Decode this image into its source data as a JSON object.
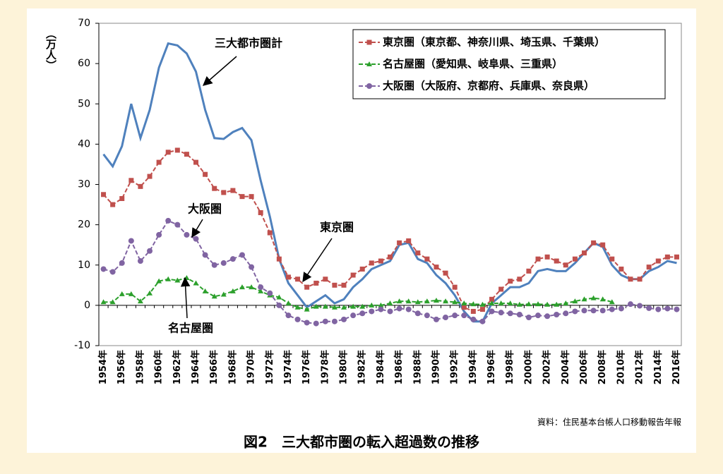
{
  "chart_data": {
    "type": "line",
    "ylabel": "（万人）",
    "categories": [
      "1954年",
      null,
      "1956年",
      null,
      "1958年",
      null,
      "1960年",
      null,
      "1962年",
      null,
      "1964年",
      null,
      "1966年",
      null,
      "1968年",
      null,
      "1970年",
      null,
      "1972年",
      null,
      "1974年",
      null,
      "1976年",
      null,
      "1978年",
      null,
      "1980年",
      null,
      "1982年",
      null,
      "1984年",
      null,
      "1986年",
      null,
      "1988年",
      null,
      "1990年",
      null,
      "1992年",
      null,
      "1994年",
      null,
      "1996年",
      null,
      "1998年",
      null,
      "2000年",
      null,
      "2002年",
      null,
      "2004年",
      null,
      "2006年",
      null,
      "2008年",
      null,
      "2010年",
      null,
      "2012年",
      null,
      "2014年",
      null,
      "2016年"
    ],
    "series": [
      {
        "name": "三大都市圏計",
        "color": "#4f81bd",
        "values": [
          37.5,
          34.5,
          39.5,
          50,
          41.5,
          48.5,
          59,
          65,
          64.5,
          62.5,
          58,
          48.5,
          41.5,
          41.3,
          43,
          44,
          41,
          31,
          22,
          11.5,
          5.5,
          2.5,
          -0.5,
          1,
          2.5,
          0.5,
          1.5,
          4.5,
          6.5,
          9,
          10,
          11,
          15,
          15.5,
          11.5,
          10.5,
          7.5,
          5.5,
          2.5,
          -1.5,
          -4,
          -4,
          0.5,
          2.5,
          4.5,
          4.5,
          5.5,
          8.5,
          9,
          8.5,
          8.5,
          10.5,
          13,
          15.5,
          14.5,
          10,
          7.5,
          6.5,
          6.5,
          8.5,
          9.5,
          11,
          10.5
        ]
      },
      {
        "name": "東京圏（東京都、神奈川県、埼玉県、千葉県）",
        "color": "#c0504d",
        "marker": "square",
        "values": [
          27.5,
          25,
          26.5,
          31,
          29.5,
          32,
          35.5,
          38,
          38.5,
          37.5,
          35.5,
          32.5,
          29,
          28,
          28.5,
          27,
          27,
          23,
          18,
          11.5,
          7,
          6.5,
          4.5,
          5.5,
          6.5,
          5,
          5,
          7.5,
          9,
          10.5,
          11,
          12,
          15.5,
          16,
          13,
          11.5,
          9.5,
          8,
          4.5,
          -0.5,
          -1.5,
          -1,
          1.5,
          4,
          6,
          6.5,
          8.5,
          11.5,
          12,
          11,
          10,
          11.5,
          13,
          15.5,
          15,
          11.5,
          9,
          6.5,
          6.5,
          9.5,
          11,
          12,
          12
        ]
      },
      {
        "name": "名古屋圏（愛知県、岐阜県、三重県）",
        "color": "#2ca02c",
        "marker": "triangle",
        "values": [
          0.8,
          0.8,
          2.8,
          2.8,
          1,
          3,
          6,
          6.5,
          6.2,
          6.8,
          5.5,
          3.5,
          2.2,
          2.7,
          3.5,
          4.5,
          4.5,
          3.5,
          2.5,
          2,
          0.5,
          -0.5,
          -1,
          -0.3,
          -0.3,
          -0.5,
          -0.5,
          -0.3,
          -0.3,
          0,
          0,
          0.5,
          1,
          1,
          0.8,
          1,
          1.2,
          1,
          0.8,
          0.5,
          0.3,
          0.2,
          0.5,
          0.5,
          0.5,
          0.2,
          0.3,
          0.3,
          0.2,
          0.2,
          0.5,
          1,
          1.5,
          1.8,
          1.5,
          0.8,
          null,
          null,
          null,
          null,
          null,
          null,
          null
        ]
      },
      {
        "name": "大阪圏（大阪府、京都府、兵庫県、奈良県）",
        "color": "#8064a2",
        "marker": "circle",
        "values": [
          9,
          8.3,
          10.5,
          16,
          11,
          13.5,
          17.5,
          21,
          20,
          17.5,
          16.5,
          12.5,
          10,
          10.5,
          11.5,
          12.5,
          9.5,
          4.5,
          3,
          0,
          -2.5,
          -3.5,
          -4.3,
          -4.5,
          -4,
          -4,
          -3.5,
          -2.5,
          -2,
          -1.5,
          -1,
          -1.5,
          -0.8,
          -1,
          -2,
          -2.5,
          -3.5,
          -3,
          -2.5,
          -2.5,
          -3.5,
          -4,
          -1.5,
          -1.8,
          -2,
          -2.3,
          -3,
          -2.5,
          -2.7,
          -2.3,
          -2,
          -1.5,
          -1.3,
          -1.3,
          -1.3,
          -1,
          -0.8,
          0.3,
          -0.1,
          -0.7,
          -1,
          -0.8,
          -1
        ]
      }
    ],
    "annotations": [
      "大阪圏",
      "東京圏",
      "名古屋圏"
    ],
    "source": "資料：住民基本台帳人口移動報告年報",
    "caption": "図2　三大都市圏の転入超過数の推移",
    "ylim": [
      -10,
      70
    ],
    "yticks": [
      -10,
      0,
      10,
      20,
      30,
      40,
      50,
      60,
      70
    ],
    "legend": "upper right"
  }
}
